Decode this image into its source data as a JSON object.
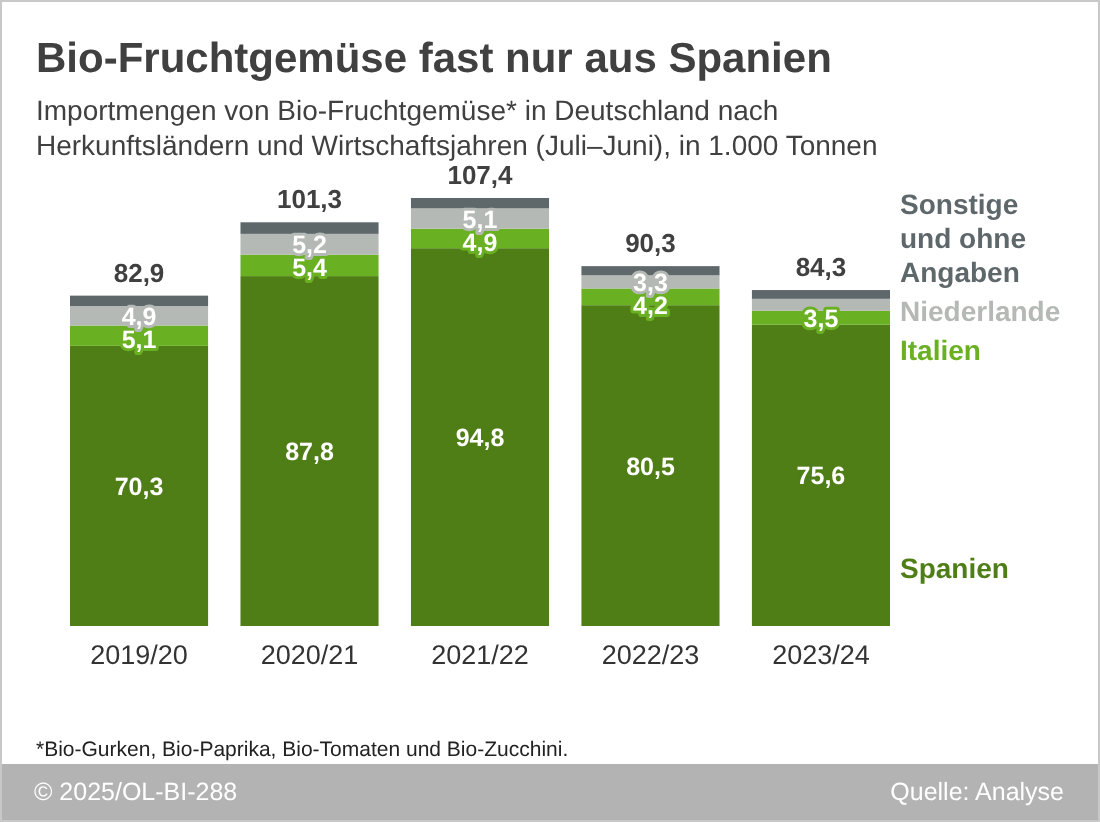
{
  "chart_data": {
    "type": "bar",
    "title": "Bio-Fruchtgemüse fast nur aus Spanien",
    "subtitle": "Importmengen von Bio-Fruchtgemüse* in Deutschland nach Herkunftsländern und Wirtschaftsjahren (Juli–Juni), in 1.000 Tonnen",
    "categories": [
      "2019/20",
      "2020/21",
      "2021/22",
      "2022/23",
      "2023/24"
    ],
    "series": [
      {
        "name": "Spanien",
        "color": "#4f7d16",
        "values": [
          70.3,
          87.8,
          94.8,
          80.5,
          75.6
        ],
        "value_labels": [
          "70,3",
          "87,8",
          "94,8",
          "80,5",
          "75,6"
        ]
      },
      {
        "name": "Italien",
        "color": "#6ab023",
        "values": [
          5.1,
          5.4,
          4.9,
          4.2,
          3.5
        ],
        "value_labels": [
          "5,1",
          "5,4",
          "4,9",
          "4,2",
          "3,5"
        ]
      },
      {
        "name": "Niederlande",
        "color": "#b5b9b5",
        "values": [
          4.9,
          5.2,
          5.1,
          3.3,
          3.0
        ],
        "value_labels": [
          "4,9",
          "5,2",
          "5,1",
          "3,3",
          null
        ]
      },
      {
        "name": "Sonstige und ohne Angaben",
        "color": "#5e676a",
        "values": [
          2.6,
          2.9,
          2.6,
          2.3,
          2.2
        ]
      }
    ],
    "stacked": true,
    "totals": [
      "82,9",
      "101,3",
      "107,4",
      "90,3",
      "84,3"
    ],
    "legend": "right",
    "annotations": [
      "*Bio-Gurken, Bio-Paprika, Bio-Tomaten und Bio-Zucchini.",
      "© 2025/OL-BI-288",
      "Quelle: Analyse"
    ]
  }
}
